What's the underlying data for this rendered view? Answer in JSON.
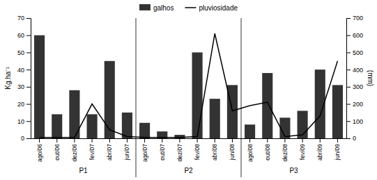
{
  "chart_data": {
    "type": "bar",
    "categories": [
      "ago/06",
      "out/06",
      "dez/06",
      "fev/07",
      "abr/07",
      "jun/07",
      "ago/07",
      "out/07",
      "dez/07",
      "fev/08",
      "abr/08",
      "jun/08",
      "ago/08",
      "out/08",
      "dez/08",
      "fev/09",
      "abr/09",
      "jun/09"
    ],
    "series": [
      {
        "name": "galhos",
        "type": "bar",
        "color": "#333333",
        "values": [
          60,
          14,
          28,
          14,
          45,
          15,
          9,
          4,
          2,
          50,
          23,
          31,
          8,
          38,
          12,
          16,
          40,
          31
        ]
      },
      {
        "name": "pluviosidade",
        "type": "line",
        "color": "#000000",
        "axis": "y2",
        "values": [
          5,
          5,
          5,
          200,
          50,
          10,
          5,
          5,
          5,
          10,
          610,
          160,
          190,
          210,
          10,
          20,
          130,
          450
        ]
      }
    ],
    "ylabel": "Kg.ha⁻¹",
    "y2label": "(mm)",
    "ylim": [
      0,
      70
    ],
    "yticks": [
      0,
      10,
      20,
      30,
      40,
      50,
      60,
      70
    ],
    "y2lim": [
      0,
      700
    ],
    "y2ticks": [
      0,
      100,
      200,
      300,
      400,
      500,
      600,
      700
    ],
    "periods": [
      {
        "label": "P1",
        "start": "ago/06",
        "end": "jun/07"
      },
      {
        "label": "P2",
        "start": "ago/07",
        "end": "jun/08"
      },
      {
        "label": "P3",
        "start": "ago/08",
        "end": "jun/09"
      }
    ],
    "legend": "top",
    "grid": false
  }
}
